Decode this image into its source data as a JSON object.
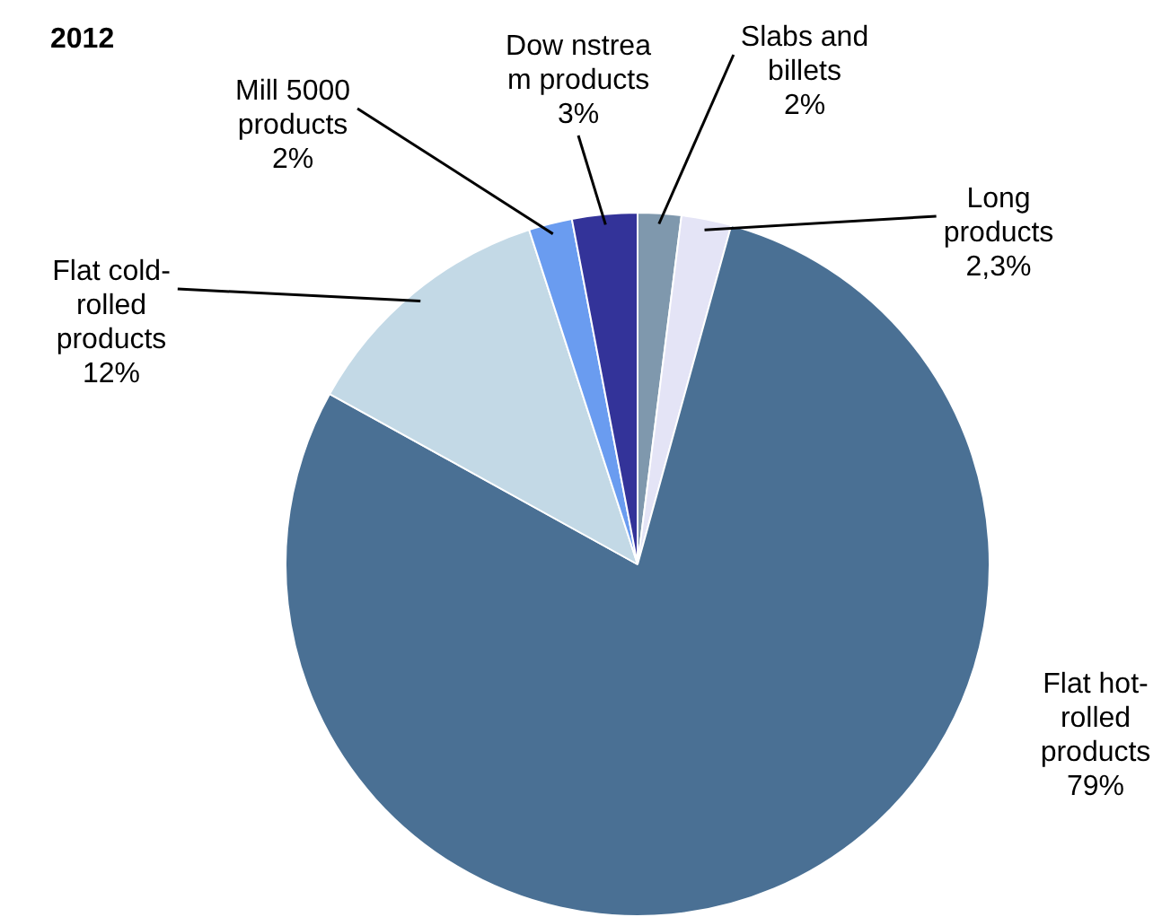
{
  "chart_data": {
    "type": "pie",
    "title": "2012",
    "categories": [
      "Slabs and billets",
      "Long products",
      "Flat hot-rolled products",
      "Flat cold-rolled products",
      "Mill 5000 products",
      "Dow nstrea m products"
    ],
    "values": [
      2,
      2.3,
      79,
      12,
      2,
      3
    ],
    "value_labels": [
      "2%",
      "2,3%",
      "79%",
      "12%",
      "2%",
      "3%"
    ],
    "colors": [
      "#7f98ad",
      "#e4e4f6",
      "#4a7094",
      "#c3d9e6",
      "#6a9cf0",
      "#333399"
    ]
  }
}
